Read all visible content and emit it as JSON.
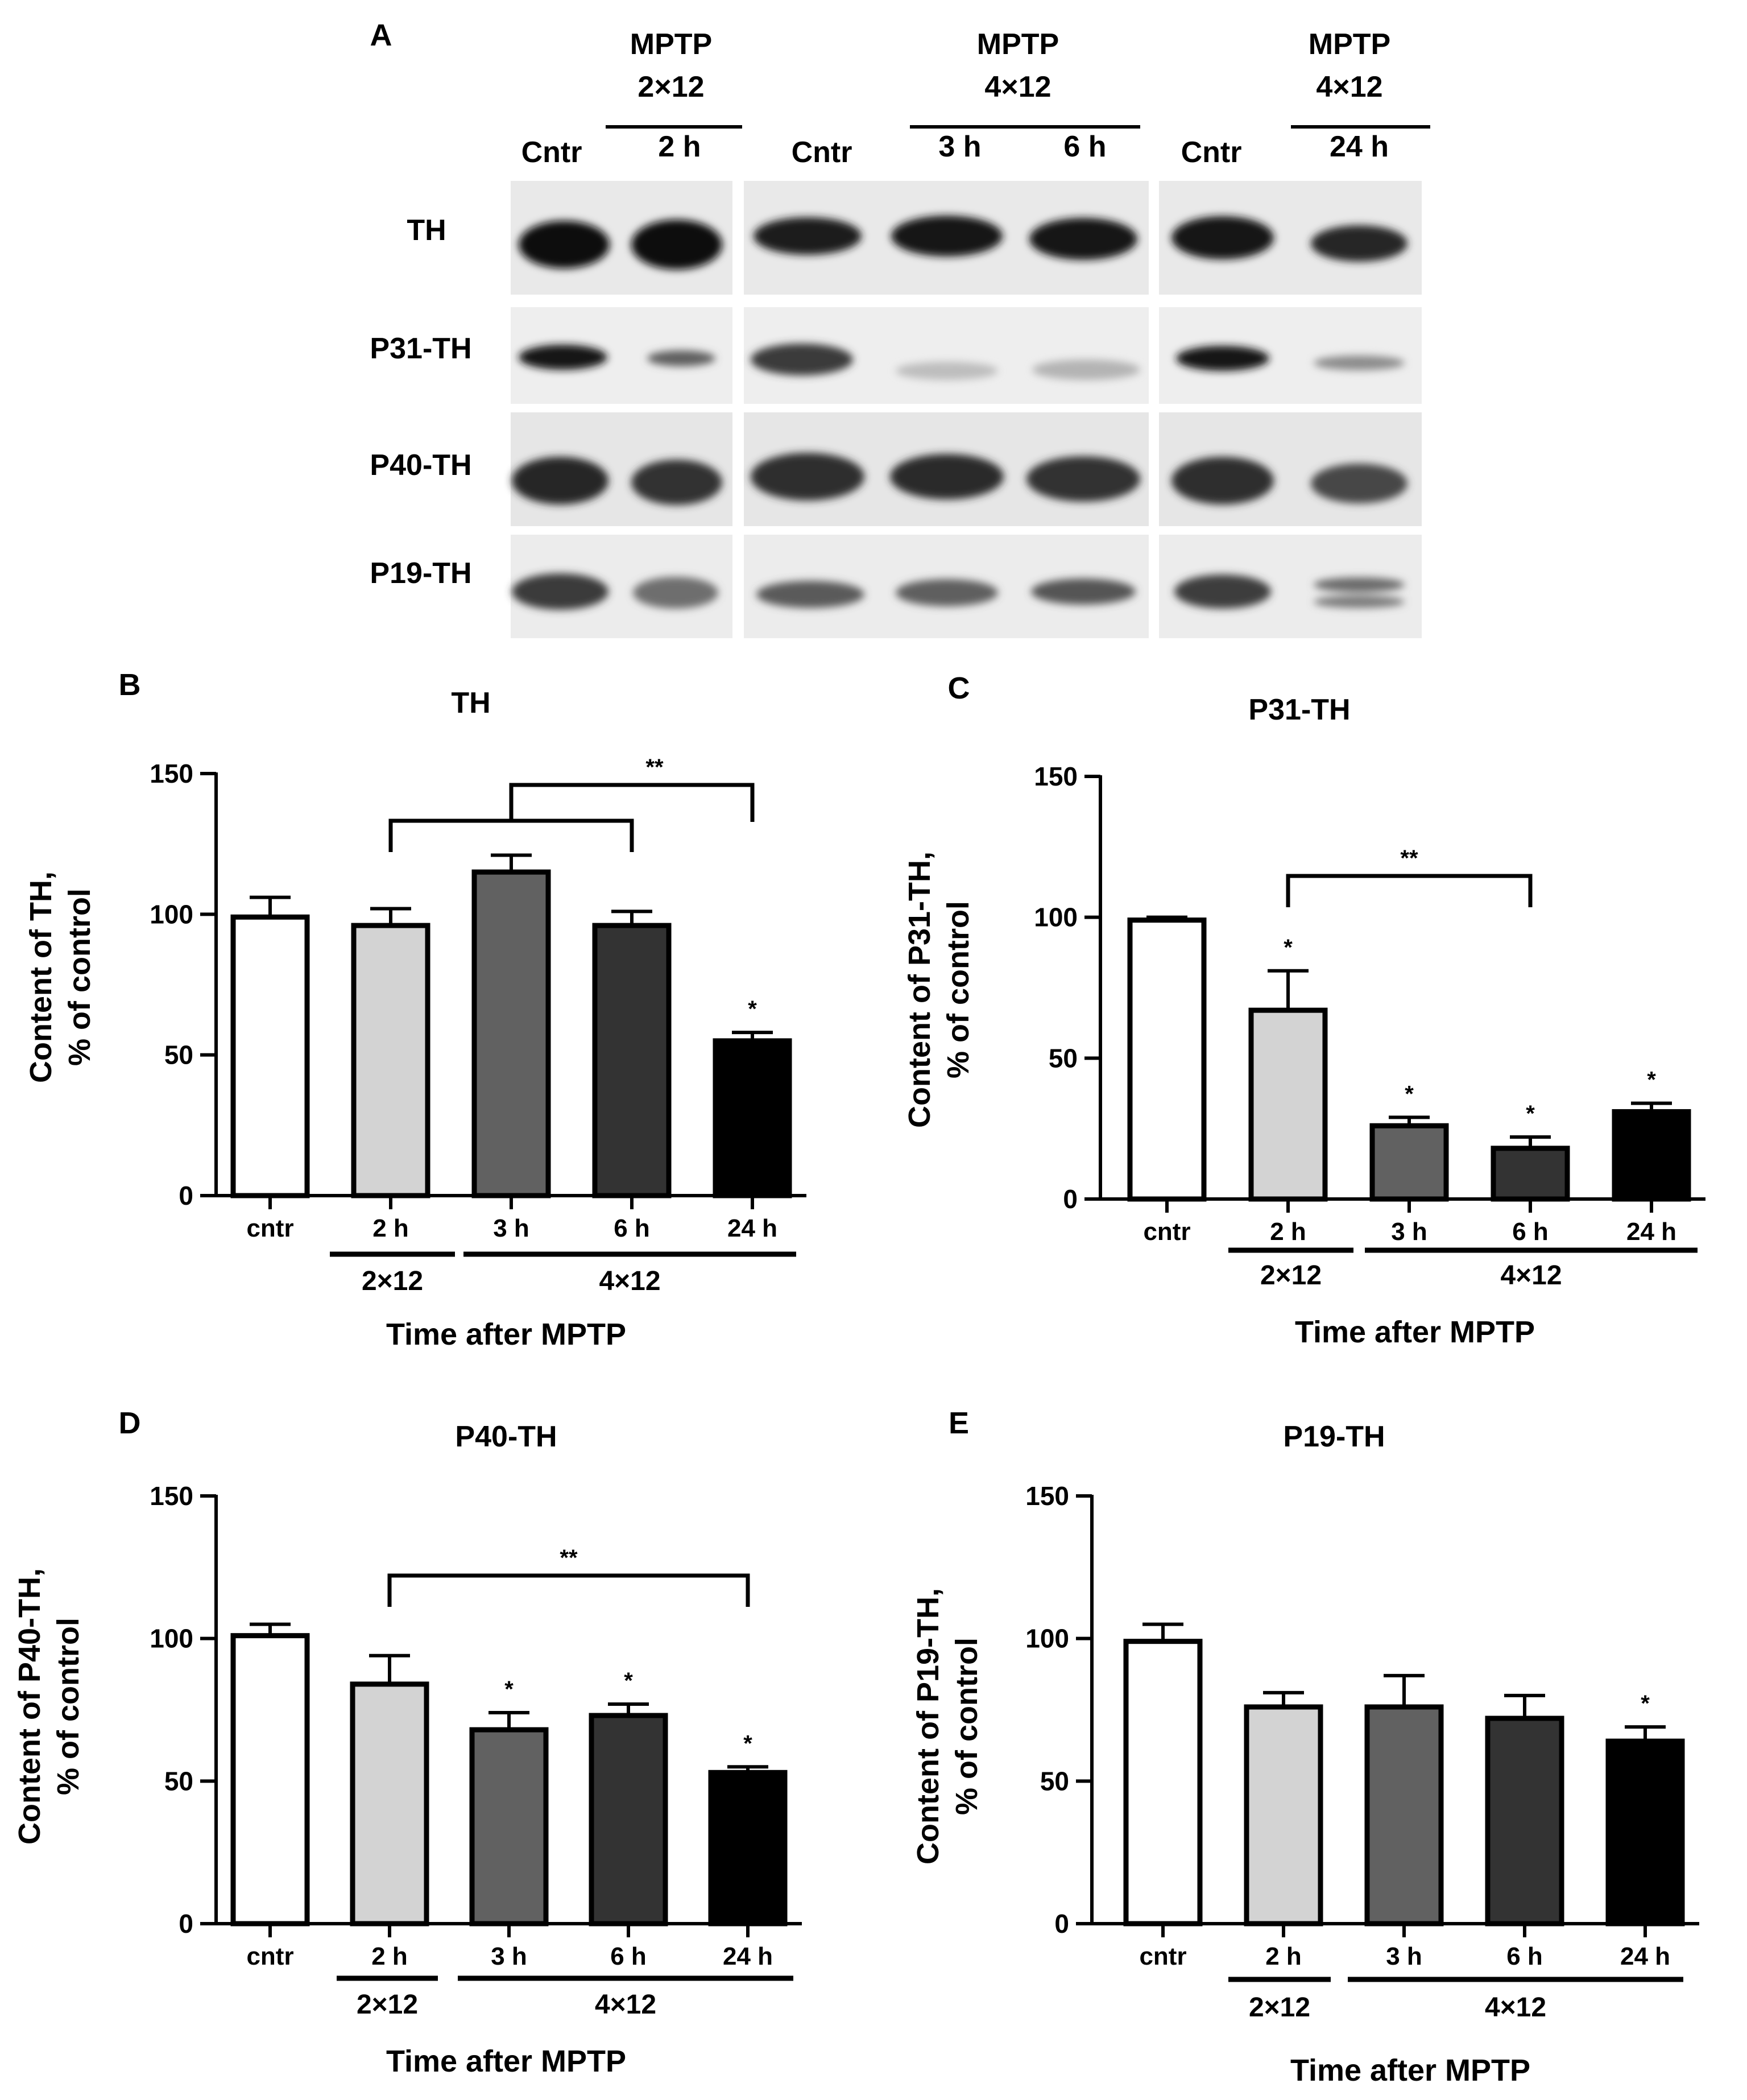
{
  "figure": {
    "panel_a": {
      "letter": "A",
      "headers": [
        {
          "line1": "MPTP",
          "line2": "2×12",
          "times": [
            "2 h"
          ]
        },
        {
          "line1": "MPTP",
          "line2": "4×12",
          "times": [
            "3 h",
            "6 h"
          ]
        },
        {
          "line1": "MPTP",
          "line2": "4×12",
          "times": [
            "24 h"
          ]
        }
      ],
      "control_label": "Cntr",
      "rows": [
        "TH",
        "P31-TH",
        "P40-TH",
        "P19-TH"
      ]
    },
    "group_labels": [
      "2×12",
      "4×12"
    ],
    "xlabel": "Time after MPTP"
  },
  "chart_data": [
    {
      "type": "bar",
      "panel": "B",
      "title": "TH",
      "categories": [
        "cntr",
        "2 h",
        "3 h",
        "6 h",
        "24 h"
      ],
      "values": [
        99,
        96,
        115,
        96,
        55
      ],
      "errors": [
        7,
        6,
        6,
        5,
        3
      ],
      "stars": [
        "",
        "",
        "",
        "",
        "*"
      ],
      "ylim": [
        0,
        150
      ],
      "yticks": [
        0,
        50,
        100,
        150
      ],
      "ylabel": [
        "Content of TH,",
        "% of control"
      ],
      "xlabel": "Time after MPTP",
      "brackets": [
        {
          "from": 1,
          "to": 3,
          "label": ""
        },
        {
          "from": 2,
          "to": 4,
          "label": "**"
        }
      ],
      "colors": [
        "#ffffff",
        "#d3d3d3",
        "#616161",
        "#333333",
        "#000000"
      ]
    },
    {
      "type": "bar",
      "panel": "C",
      "title": "P31-TH",
      "categories": [
        "cntr",
        "2 h",
        "3 h",
        "6 h",
        "24 h"
      ],
      "values": [
        99,
        67,
        26,
        18,
        31
      ],
      "errors": [
        1,
        14,
        3,
        4,
        3
      ],
      "stars": [
        "",
        "*",
        "*",
        "*",
        "*"
      ],
      "ylim": [
        0,
        150
      ],
      "yticks": [
        0,
        50,
        100,
        150
      ],
      "ylabel": [
        "Content of P31-TH,",
        "% of control"
      ],
      "xlabel": "Time after MPTP",
      "brackets": [
        {
          "from": 1,
          "to": 3,
          "label": "**"
        }
      ],
      "colors": [
        "#ffffff",
        "#d3d3d3",
        "#616161",
        "#333333",
        "#000000"
      ]
    },
    {
      "type": "bar",
      "panel": "D",
      "title": "P40-TH",
      "categories": [
        "cntr",
        "2 h",
        "3 h",
        "6 h",
        "24 h"
      ],
      "values": [
        101,
        84,
        68,
        73,
        53
      ],
      "errors": [
        4,
        10,
        6,
        4,
        2
      ],
      "stars": [
        "",
        "",
        "*",
        "*",
        "*"
      ],
      "ylim": [
        0,
        150
      ],
      "yticks": [
        0,
        50,
        100,
        150
      ],
      "ylabel": [
        "Content of P40-TH,",
        "% of control"
      ],
      "xlabel": "Time after MPTP",
      "brackets": [
        {
          "from": 1,
          "to": 4,
          "label": "**"
        }
      ],
      "colors": [
        "#ffffff",
        "#d3d3d3",
        "#616161",
        "#333333",
        "#000000"
      ]
    },
    {
      "type": "bar",
      "panel": "E",
      "title": "P19-TH",
      "categories": [
        "cntr",
        "2 h",
        "3 h",
        "6 h",
        "24 h"
      ],
      "values": [
        99,
        76,
        76,
        72,
        64
      ],
      "errors": [
        6,
        5,
        11,
        8,
        5
      ],
      "stars": [
        "",
        "",
        "",
        "",
        "*"
      ],
      "ylim": [
        0,
        150
      ],
      "yticks": [
        0,
        50,
        100,
        150
      ],
      "ylabel": [
        "Content of P19-TH,",
        "% of control"
      ],
      "xlabel": "Time after MPTP",
      "brackets": [],
      "colors": [
        "#ffffff",
        "#d3d3d3",
        "#616161",
        "#333333",
        "#000000"
      ]
    }
  ]
}
